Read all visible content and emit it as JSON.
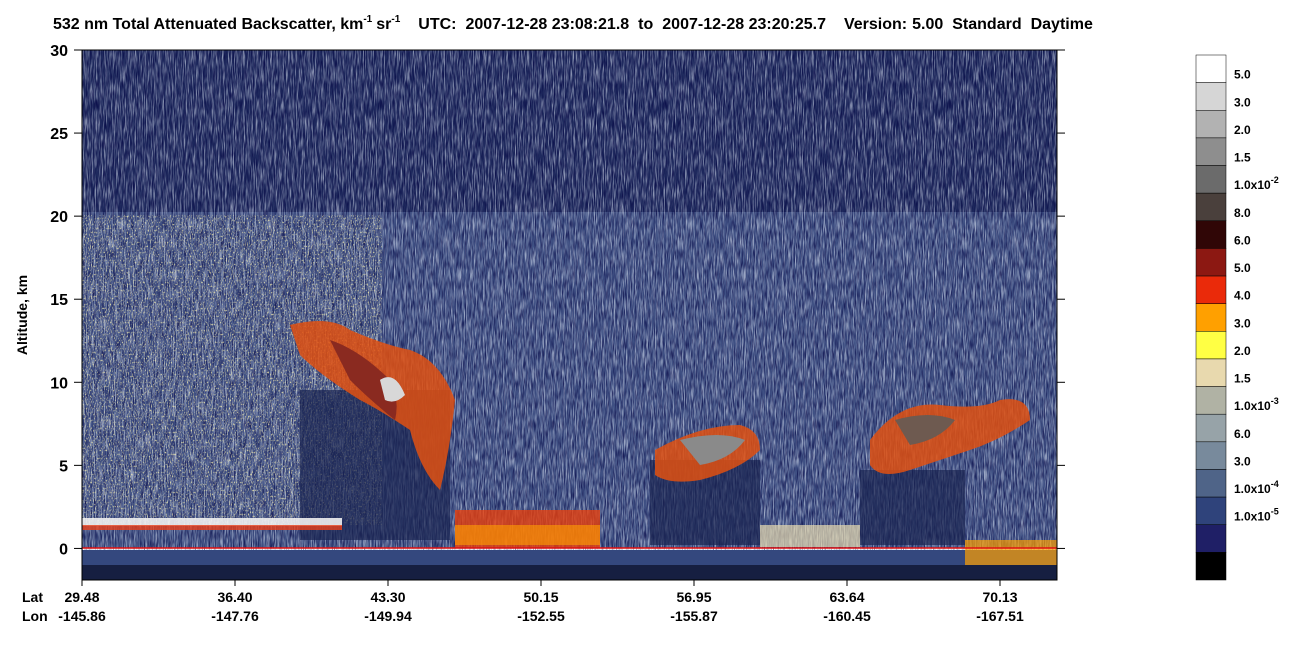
{
  "chart_data": {
    "type": "curtain",
    "title": {
      "main": "532 nm Total Attenuated Backscatter, km",
      "exp1": "-1",
      "unit2": "sr",
      "exp2": "-1"
    },
    "utc_label": "UTC:",
    "start": "2007-12-28 23:08:21.8",
    "to": "to",
    "end": "2007-12-28 23:20:25.7",
    "version_label": "Version:",
    "version": "5.00",
    "product": "Standard",
    "mode": "Daytime",
    "ylabel": "Altitude, km",
    "ylim": [
      -1.9,
      30
    ],
    "yticks": [
      0,
      5,
      10,
      15,
      20,
      25,
      30
    ],
    "lat_label": "Lat",
    "lon_label": "Lon",
    "lat": [
      "29.48",
      "36.40",
      "43.30",
      "50.15",
      "56.95",
      "63.64",
      "70.13"
    ],
    "lon": [
      "-145.86",
      "-147.76",
      "-149.94",
      "-152.55",
      "-155.87",
      "-160.45",
      "-167.51"
    ],
    "colorbar": {
      "colors": [
        "#ffffff",
        "#d6d6d6",
        "#b2b2b2",
        "#8e8e8e",
        "#6b6b6b",
        "#4a403c",
        "#300606",
        "#8c1812",
        "#ea2a0a",
        "#ffa000",
        "#ffff44",
        "#e8d9ae",
        "#b0b2a4",
        "#97a3a8",
        "#788a9c",
        "#4f6488",
        "#2f437b",
        "#1f1f66",
        "#000000"
      ],
      "labels": [
        "5.0",
        "3.0",
        "2.0",
        "1.5",
        {
          "text": "1.0x10",
          "sup": "-2"
        },
        "8.0",
        "6.0",
        "5.0",
        "4.0",
        "3.0",
        "2.0",
        "1.5",
        {
          "text": "1.0x10",
          "sup": "-3"
        },
        "6.0",
        "3.0",
        {
          "text": "1.0x10",
          "sup": "-4"
        },
        {
          "text": "1.0x10",
          "sup": "-5"
        },
        null,
        null
      ]
    }
  }
}
